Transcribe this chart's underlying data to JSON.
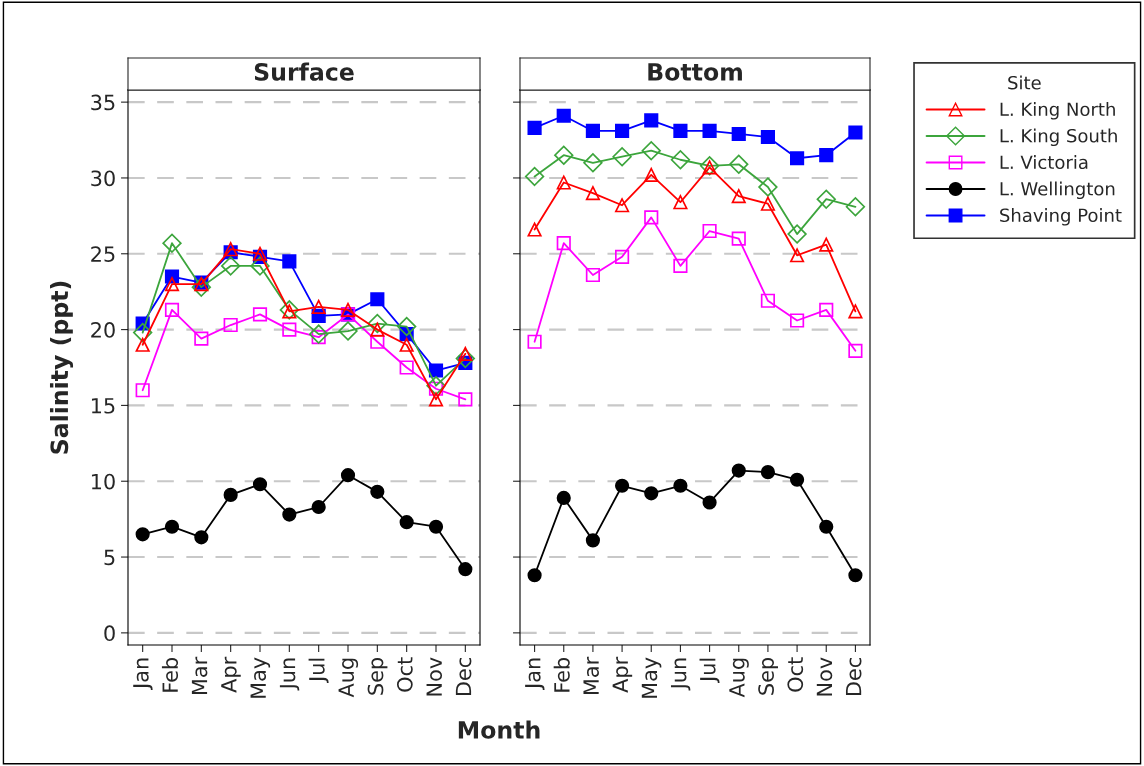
{
  "chart_data": [
    {
      "type": "line",
      "title": "Surface",
      "ylabel": "Salinity (ppt)",
      "xlabel": "Month",
      "categories": [
        "Jan",
        "Feb",
        "Mar",
        "Apr",
        "May",
        "Jun",
        "Jul",
        "Aug",
        "Sep",
        "Oct",
        "Nov",
        "Dec"
      ],
      "ylim": [
        -0.8,
        35.8
      ],
      "yticks": [
        0,
        5,
        10,
        15,
        20,
        25,
        30,
        35
      ],
      "grid": "y",
      "series": [
        {
          "color": "#ff0000",
          "marker": "triangle",
          "values": [
            19.0,
            23.0,
            23.0,
            25.3,
            25.0,
            21.2,
            21.5,
            21.3,
            20.0,
            19.0,
            15.4,
            18.4
          ]
        },
        {
          "color": "#3ca53c",
          "marker": "diamond",
          "values": [
            19.8,
            25.7,
            22.8,
            24.2,
            24.2,
            21.3,
            19.7,
            19.9,
            20.4,
            20.2,
            16.3,
            18.1
          ]
        },
        {
          "color": "#ff00ff",
          "marker": "square",
          "values": [
            16.0,
            21.3,
            19.4,
            20.3,
            21.0,
            20.0,
            19.5,
            21.0,
            19.2,
            17.5,
            16.1,
            15.4
          ]
        },
        {
          "color": "#000000",
          "marker": "circle",
          "values": [
            6.5,
            7.0,
            6.3,
            9.1,
            9.8,
            7.8,
            8.3,
            10.4,
            9.3,
            7.3,
            7.0,
            4.2
          ]
        },
        {
          "color": "#0000ff",
          "marker": "square",
          "values": [
            20.4,
            23.5,
            23.1,
            25.1,
            24.8,
            24.5,
            20.9,
            21.0,
            22.0,
            19.7,
            17.3,
            17.8
          ]
        }
      ]
    },
    {
      "type": "line",
      "title": "Bottom",
      "legend_title": "Site",
      "legend": "right",
      "tick_labels": "x",
      "categories": [
        "Jan",
        "Feb",
        "Mar",
        "Apr",
        "May",
        "Jun",
        "Jul",
        "Aug",
        "Sep",
        "Oct",
        "Nov",
        "Dec"
      ],
      "ylim": [
        -0.8,
        35.8
      ],
      "yticks": [
        0,
        5,
        10,
        15,
        20,
        25,
        30,
        35
      ],
      "grid": "y",
      "series": [
        {
          "name": "L. King North",
          "color": "#ff0000",
          "marker": "triangle",
          "values": [
            26.6,
            29.7,
            29.0,
            28.2,
            30.2,
            28.4,
            30.7,
            28.8,
            28.3,
            24.9,
            25.6,
            21.2
          ]
        },
        {
          "name": "L. King South",
          "color": "#3ca53c",
          "marker": "diamond",
          "values": [
            30.1,
            31.5,
            31.0,
            31.4,
            31.8,
            31.2,
            30.8,
            30.9,
            29.4,
            26.3,
            28.6,
            28.1
          ]
        },
        {
          "name": "L. Victoria",
          "color": "#ff00ff",
          "marker": "square",
          "values": [
            19.2,
            25.7,
            23.6,
            24.8,
            27.4,
            24.2,
            26.5,
            26.0,
            21.9,
            20.6,
            21.3,
            18.6
          ]
        },
        {
          "name": "L. Wellington",
          "color": "#000000",
          "marker": "circle",
          "values": [
            3.8,
            8.9,
            6.1,
            9.7,
            9.2,
            9.7,
            8.6,
            10.7,
            10.6,
            10.1,
            7.0,
            3.8
          ]
        },
        {
          "name": "Shaving Point",
          "color": "#0000ff",
          "marker": "square",
          "values": [
            33.3,
            34.1,
            33.1,
            33.1,
            33.8,
            33.1,
            33.1,
            32.9,
            32.7,
            31.3,
            31.5,
            33.0
          ]
        }
      ]
    }
  ]
}
